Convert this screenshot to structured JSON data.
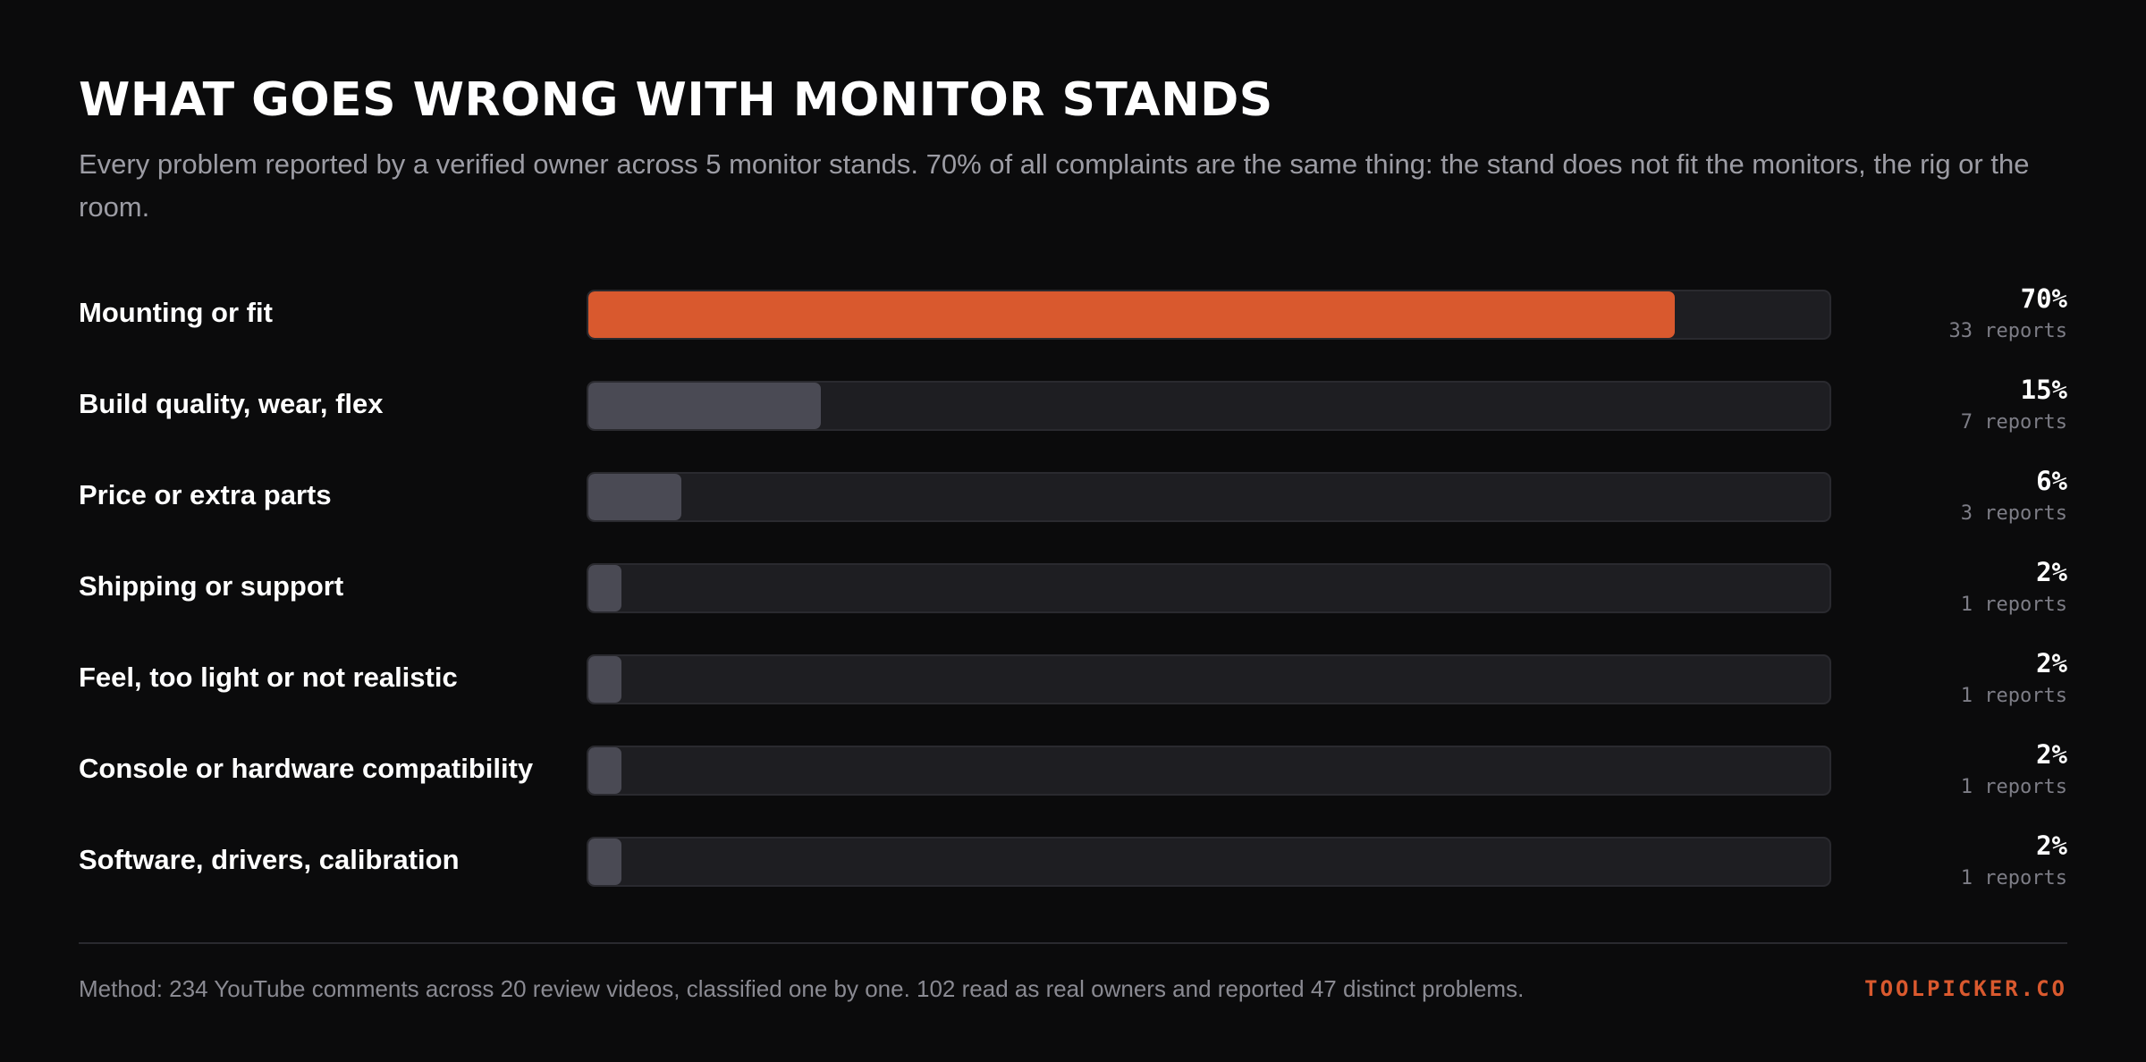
{
  "header": {
    "title": "WHAT GOES WRONG WITH MONITOR STANDS",
    "subtitle": "Every problem reported by a verified owner across 5 monitor stands. 70% of all complaints are the same thing: the stand does not fit the monitors, the rig or the room."
  },
  "chart_data": {
    "type": "bar",
    "orientation": "horizontal",
    "xlim": [
      0,
      80
    ],
    "categories": [
      "Mounting or fit",
      "Build quality, wear, flex",
      "Price or extra parts",
      "Shipping or support",
      "Feel, too light or not realistic",
      "Console or hardware compatibility",
      "Software, drivers, calibration"
    ],
    "values": [
      70,
      15,
      6,
      2,
      2,
      2,
      2
    ],
    "value_labels": [
      "70%",
      "15%",
      "6%",
      "2%",
      "2%",
      "2%",
      "2%"
    ],
    "report_labels": [
      "33 reports",
      "7 reports",
      "3 reports",
      "1 reports",
      "1 reports",
      "1 reports",
      "1 reports"
    ],
    "highlight_index": 0,
    "colors": {
      "highlight": "#d9592e",
      "bar": "#4a4a54",
      "track": "#1e1e22"
    }
  },
  "footer": {
    "method": "Method: 234 YouTube comments across 20 review videos, classified one by one. 102 read as real owners and reported 47 distinct problems.",
    "brand": "TOOLPICKER.CO"
  }
}
